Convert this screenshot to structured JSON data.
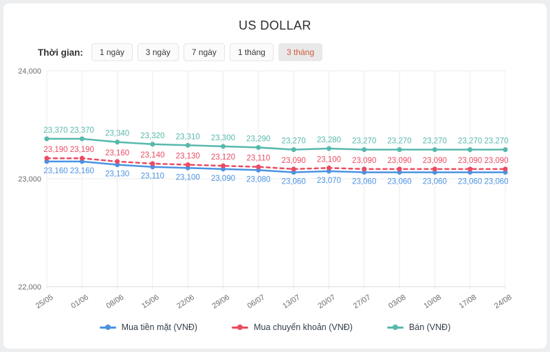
{
  "window": {
    "title": "US DOLLAR"
  },
  "controls": {
    "label": "Thời gian:",
    "selected_text_color": "#d25a3c",
    "buttons": [
      {
        "label": "1 ngày",
        "selected": false
      },
      {
        "label": "3 ngày",
        "selected": false
      },
      {
        "label": "7 ngày",
        "selected": false
      },
      {
        "label": "1 tháng",
        "selected": false
      },
      {
        "label": "3 tháng",
        "selected": true
      }
    ]
  },
  "chart_data": {
    "type": "line",
    "title": "US DOLLAR",
    "xlabel": "",
    "ylabel": "",
    "x_labels": [
      "25/05",
      "01/06",
      "08/06",
      "15/06",
      "22/06",
      "29/06",
      "06/07",
      "13/07",
      "20/07",
      "27/07",
      "03/08",
      "10/08",
      "17/08",
      "24/08"
    ],
    "ylim": [
      22000,
      24000
    ],
    "y_ticks": [
      {
        "label": "22,000",
        "value": 22000
      },
      {
        "label": "23,000",
        "value": 23000
      },
      {
        "label": "24,000",
        "value": 24000
      }
    ],
    "grid": true,
    "legend_position": "bottom",
    "grid_color": "#ececec",
    "axis_color": "#d8d8d8",
    "tick_text_color": "#6b6b6b",
    "series": [
      {
        "name": "Mua tiền mặt (VNĐ)",
        "color": "#4a92e3",
        "line_style": "solid",
        "label_position": "below",
        "values": [
          23160,
          23160,
          23130,
          23110,
          23100,
          23090,
          23080,
          23060,
          23070,
          23060,
          23060,
          23060,
          23060,
          23060
        ]
      },
      {
        "name": "Mua chuyển khoản (VNĐ)",
        "color": "#ea4b62",
        "line_style": "dashed",
        "label_position": "above",
        "values": [
          23190,
          23190,
          23160,
          23140,
          23130,
          23120,
          23110,
          23090,
          23100,
          23090,
          23090,
          23090,
          23090,
          23090
        ]
      },
      {
        "name": "Bán (VNĐ)",
        "color": "#57b8ac",
        "line_style": "solid",
        "label_position": "above",
        "values": [
          23370,
          23370,
          23340,
          23320,
          23310,
          23300,
          23290,
          23270,
          23280,
          23270,
          23270,
          23270,
          23270,
          23270
        ]
      }
    ]
  }
}
